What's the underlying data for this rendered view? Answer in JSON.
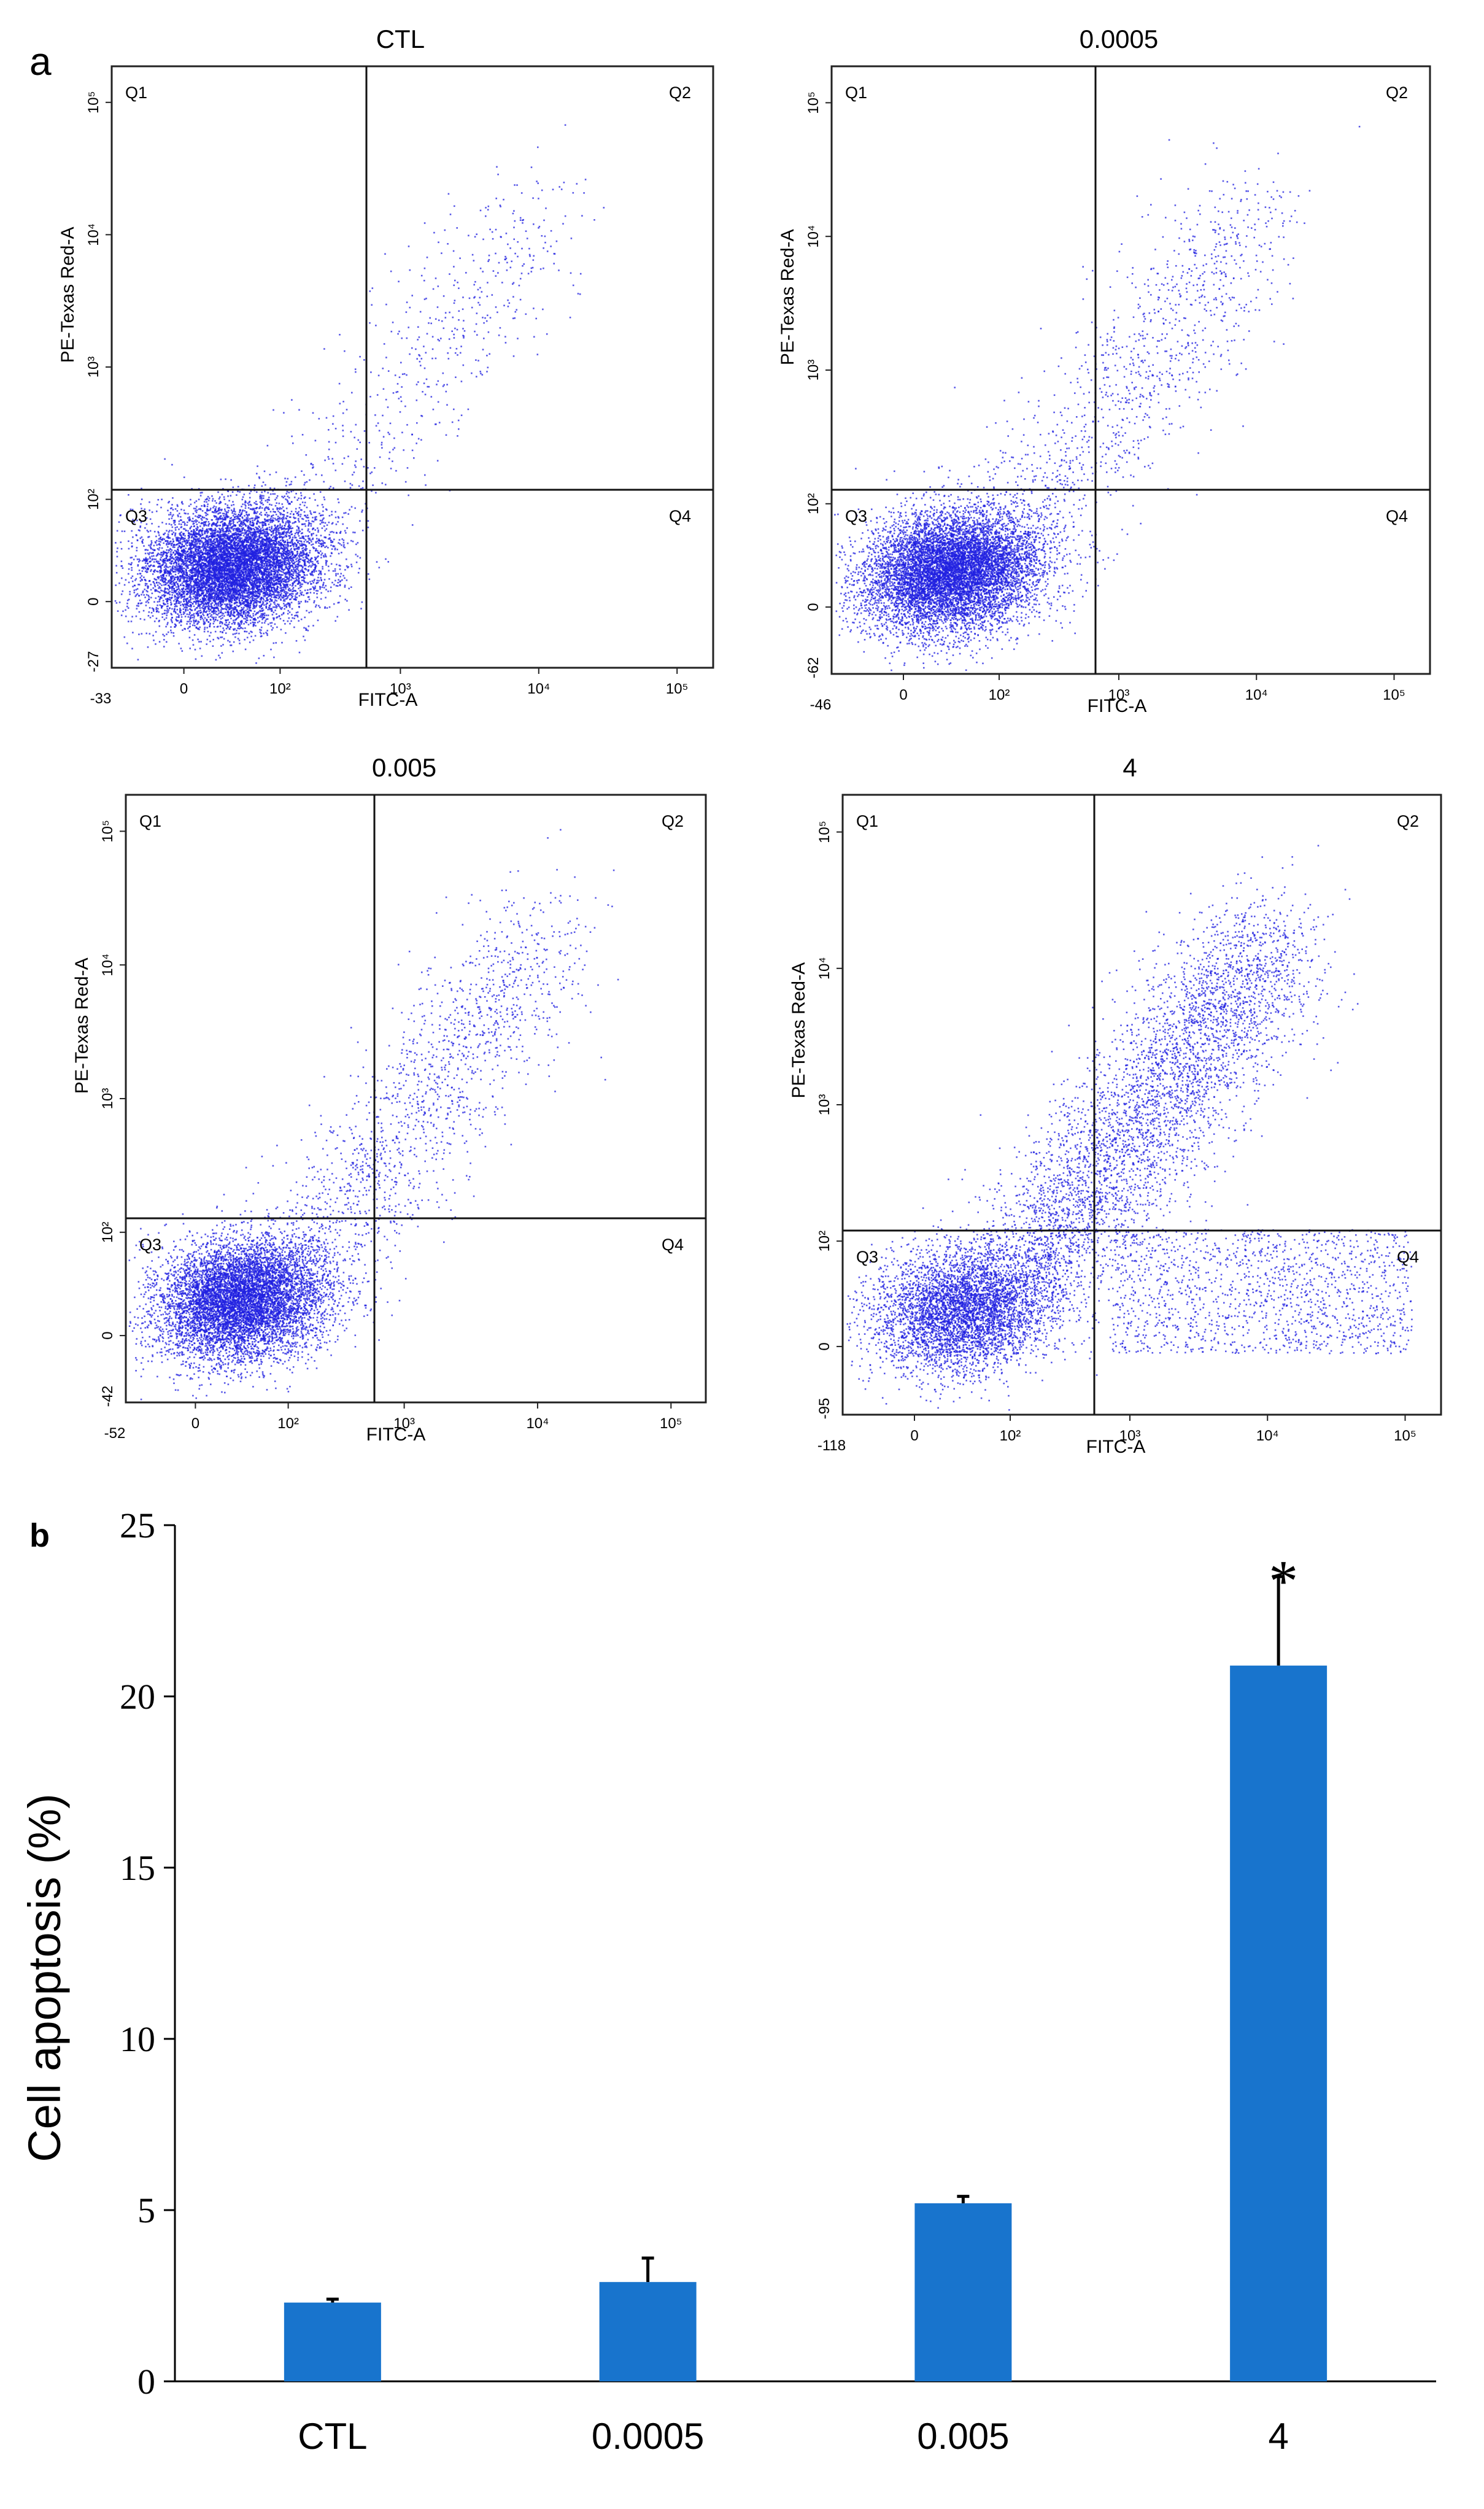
{
  "panel_labels": {
    "a": "a",
    "b": "b"
  },
  "scatter_panels": [
    {
      "title": "CTL",
      "x_axis_label": "FITC-A",
      "y_axis_label": "PE-Texas Red-A",
      "quadrants": [
        "Q1",
        "Q2",
        "Q3",
        "Q4"
      ],
      "x_min_tick": "-33",
      "y_min_tick": "-27",
      "x_ticks": [
        "0",
        "10²",
        "10³",
        "10⁴",
        "10⁵"
      ],
      "y_ticks": [
        "0",
        "10²",
        "10³",
        "10⁴",
        "10⁵"
      ]
    },
    {
      "title": "0.0005",
      "x_axis_label": "FITC-A",
      "y_axis_label": "PE-Texas Red-A",
      "quadrants": [
        "Q1",
        "Q2",
        "Q3",
        "Q4"
      ],
      "x_min_tick": "-46",
      "y_min_tick": "-62",
      "x_ticks": [
        "0",
        "10²",
        "10³",
        "10⁴",
        "10⁵"
      ],
      "y_ticks": [
        "0",
        "10²",
        "10³",
        "10⁴",
        "10⁵"
      ]
    },
    {
      "title": "0.005",
      "x_axis_label": "FITC-A",
      "y_axis_label": "PE-Texas Red-A",
      "quadrants": [
        "Q1",
        "Q2",
        "Q3",
        "Q4"
      ],
      "x_min_tick": "-52",
      "y_min_tick": "-42",
      "x_ticks": [
        "0",
        "10²",
        "10³",
        "10⁴",
        "10⁵"
      ],
      "y_ticks": [
        "0",
        "10²",
        "10³",
        "10⁴",
        "10⁵"
      ]
    },
    {
      "title": "4",
      "x_axis_label": "FITC-A",
      "y_axis_label": "PE-Texas Red-A",
      "quadrants": [
        "Q1",
        "Q2",
        "Q3",
        "Q4"
      ],
      "x_min_tick": "-118",
      "y_min_tick": "-95",
      "x_ticks": [
        "0",
        "10²",
        "10³",
        "10⁴",
        "10⁵"
      ],
      "y_ticks": [
        "0",
        "10²",
        "10³",
        "10⁴",
        "10⁵"
      ]
    }
  ],
  "chart_data": {
    "type": "bar",
    "categories": [
      "CTL",
      "0.0005",
      "0.005",
      "4"
    ],
    "values": [
      2.3,
      2.9,
      5.2,
      20.9
    ],
    "errors": [
      0.1,
      0.7,
      0.2,
      2.6
    ],
    "significance": [
      "",
      "",
      "",
      "*"
    ],
    "title": "",
    "xlabel": "",
    "ylabel": "Cell apoptosis (%)",
    "ylim": [
      0,
      25
    ],
    "yticks": [
      0,
      5,
      10,
      15,
      20,
      25
    ],
    "grid": false,
    "color": "#1874cd"
  }
}
